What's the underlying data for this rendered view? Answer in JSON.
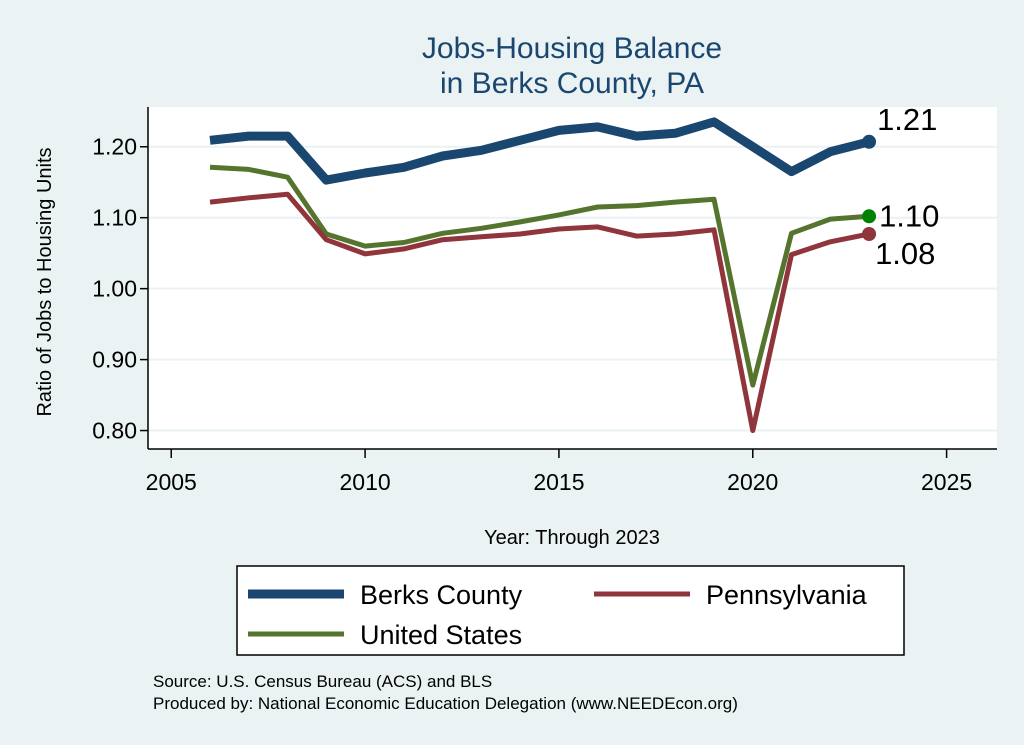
{
  "chart_data": {
    "type": "line",
    "title": [
      "Jobs-Housing Balance",
      "in Berks County, PA"
    ],
    "xlabel": "Year: Through 2023",
    "ylabel": "Ratio of Jobs to Housing Units",
    "xlim": [
      2004.4,
      2026.3
    ],
    "ylim": [
      0.774,
      1.256
    ],
    "xticks": [
      2005,
      2010,
      2015,
      2020,
      2025
    ],
    "yticks": [
      0.8,
      0.9,
      1.0,
      1.1,
      1.2
    ],
    "ytick_labels": [
      "0.80",
      "0.90",
      "1.00",
      "1.10",
      "1.20"
    ],
    "grid": true,
    "legend_placement": "bottom",
    "x": [
      2006,
      2007,
      2008,
      2009,
      2010,
      2011,
      2012,
      2013,
      2014,
      2015,
      2016,
      2017,
      2018,
      2019,
      2020,
      2021,
      2022,
      2023
    ],
    "series": [
      {
        "name": "Berks County",
        "color": "#1a476f",
        "end_label": "1.21",
        "end_marker_color": "#1a476f",
        "values": [
          1.209,
          1.215,
          1.215,
          1.153,
          1.163,
          1.171,
          1.187,
          1.195,
          1.209,
          1.223,
          1.228,
          1.215,
          1.219,
          1.235,
          1.2,
          1.165,
          1.193,
          1.207
        ]
      },
      {
        "name": "Pennsylvania",
        "color": "#90353b",
        "end_label": "1.08",
        "end_marker_color": "#90353b",
        "values": [
          1.122,
          1.128,
          1.133,
          1.069,
          1.049,
          1.056,
          1.069,
          1.073,
          1.077,
          1.084,
          1.087,
          1.074,
          1.077,
          1.083,
          0.8,
          1.048,
          1.066,
          1.077
        ]
      },
      {
        "name": "United States",
        "color": "#55752f",
        "end_label": "1.10",
        "end_marker_color": "#008000",
        "values": [
          1.171,
          1.168,
          1.157,
          1.077,
          1.06,
          1.065,
          1.078,
          1.085,
          1.094,
          1.104,
          1.115,
          1.117,
          1.122,
          1.126,
          0.864,
          1.078,
          1.098,
          1.102
        ]
      }
    ]
  },
  "notes": {
    "source": "Source: U.S. Census Bureau (ACS) and BLS",
    "produced_by": "Produced by: National Economic Education Delegation (www.NEEDEcon.org)"
  },
  "colors": {
    "background": "#eaf2f3",
    "plot_background": "#ffffff",
    "title": "#1a476f"
  }
}
